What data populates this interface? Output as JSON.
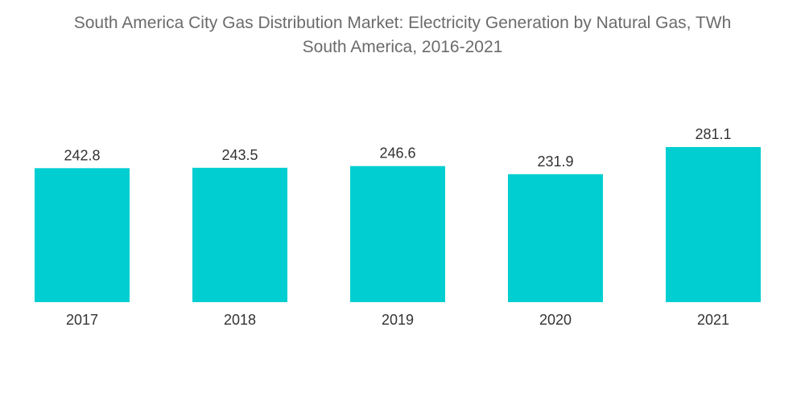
{
  "chart_data": {
    "type": "bar",
    "title": "South America City Gas Distribution Market: Electricity Generation by Natural Gas, TWh",
    "subtitle": "South America, 2016-2021",
    "categories": [
      "2017",
      "2018",
      "2019",
      "2020",
      "2021"
    ],
    "values": [
      242.8,
      243.5,
      246.6,
      231.9,
      281.1
    ],
    "value_labels": [
      "242.8",
      "243.5",
      "246.6",
      "231.9",
      "281.1"
    ],
    "xlabel": "",
    "ylabel": "",
    "ylim": [
      0,
      281.1
    ],
    "grid": false,
    "legend": "none",
    "bar_color": "#00CED1"
  }
}
